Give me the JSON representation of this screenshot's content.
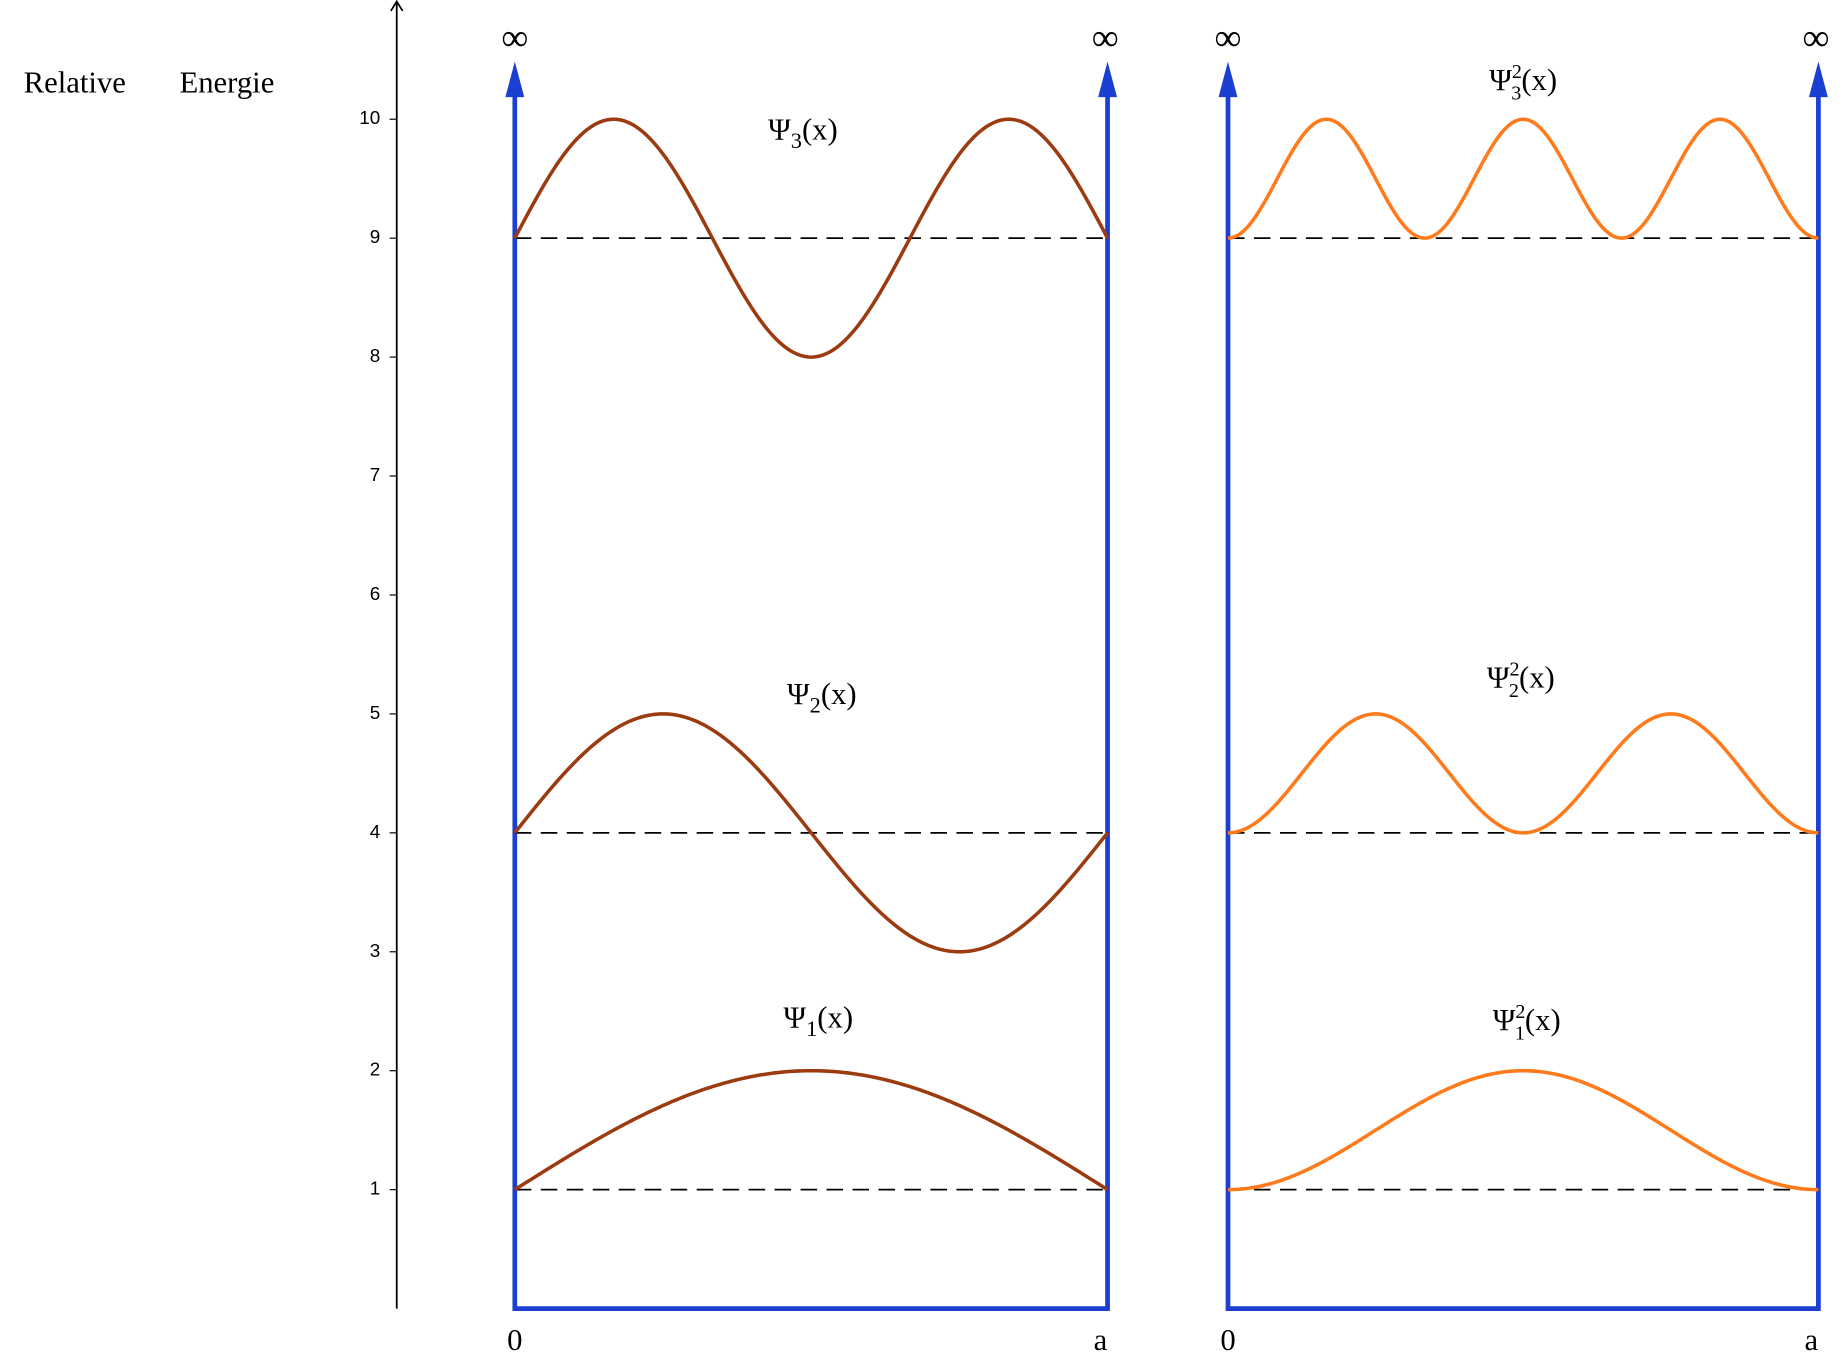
{
  "axis": {
    "title": [
      "Relative",
      "Energie"
    ],
    "ylim": [
      0,
      11
    ],
    "yticks": [
      1,
      2,
      3,
      4,
      5,
      6,
      7,
      8,
      9,
      10
    ]
  },
  "wall_color": "#1a3fd1",
  "panels": [
    {
      "kind": "psi",
      "color": "#9c3a10",
      "wall_labels": [
        "∞",
        "∞"
      ],
      "x_labels": [
        "0",
        "a"
      ],
      "states": [
        {
          "n": 1,
          "level": 1,
          "amplitude": 1,
          "label": {
            "base": "Ψ",
            "sub": "1",
            "arg": "(x)"
          }
        },
        {
          "n": 2,
          "level": 4,
          "amplitude": 1,
          "label": {
            "base": "Ψ",
            "sub": "2",
            "arg": "(x)"
          }
        },
        {
          "n": 3,
          "level": 9,
          "amplitude": 1,
          "label": {
            "base": "Ψ",
            "sub": "3",
            "arg": "(x)"
          }
        }
      ]
    },
    {
      "kind": "psi_squared",
      "color": "#ff7a1a",
      "wall_labels": [
        "∞",
        "∞"
      ],
      "x_labels": [
        "0",
        "a"
      ],
      "states": [
        {
          "n": 1,
          "level": 1,
          "amplitude": 1,
          "label": {
            "base": "Ψ",
            "sup": "2",
            "sub": "1",
            "arg": "(x)"
          }
        },
        {
          "n": 2,
          "level": 4,
          "amplitude": 1,
          "label": {
            "base": "Ψ",
            "sup": "2",
            "sub": "2",
            "arg": "(x)"
          }
        },
        {
          "n": 3,
          "level": 9,
          "amplitude": 1,
          "label": {
            "base": "Ψ",
            "sup": "2",
            "sub": "3",
            "arg": "(x)"
          }
        }
      ]
    }
  ]
}
